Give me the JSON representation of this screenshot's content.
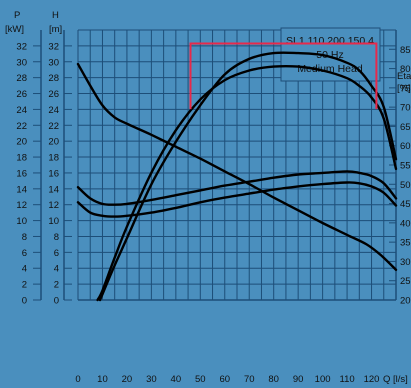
{
  "chart_data": {
    "type": "line",
    "title_lines": [
      "SL1.110.200.150.4",
      "50 Hz",
      "Medium Head"
    ],
    "xlabel": "Q [l/s]",
    "x_ticks": [
      0,
      10,
      20,
      30,
      40,
      50,
      60,
      70,
      80,
      90,
      100,
      110,
      120
    ],
    "xlim": [
      0,
      130
    ],
    "axes": [
      {
        "id": "P",
        "label_top": "P",
        "label_unit": "[kW]",
        "ticks": [
          0,
          2,
          4,
          6,
          8,
          10,
          12,
          14,
          16,
          18,
          20,
          22,
          24,
          26,
          28,
          30,
          32
        ]
      },
      {
        "id": "H",
        "label_top": "H",
        "label_unit": "[m]",
        "ticks": [
          0,
          2,
          4,
          6,
          8,
          10,
          12,
          14,
          16,
          18,
          20,
          22,
          24,
          26,
          28,
          30,
          32
        ]
      },
      {
        "id": "Eta",
        "label_top": "Eta",
        "label_unit": "[%]",
        "ticks": [
          20,
          25,
          30,
          35,
          40,
          45,
          50,
          55,
          60,
          65,
          70,
          75,
          80,
          85
        ]
      }
    ],
    "ylim_H": [
      0,
      34
    ],
    "ylim_Eta": [
      20,
      90
    ],
    "grid": true,
    "series": [
      {
        "axis": "H",
        "x": [
          0,
          5,
          10,
          15,
          20,
          30,
          40,
          50,
          60,
          70,
          80,
          90,
          100,
          110,
          118,
          124,
          130
        ],
        "y": [
          29.7,
          27.0,
          24.5,
          23.0,
          22.2,
          20.8,
          19.3,
          17.8,
          16.2,
          14.6,
          12.9,
          11.3,
          9.7,
          8.2,
          7.0,
          5.6,
          3.8
        ]
      },
      {
        "axis": "P",
        "x": [
          0,
          5,
          10,
          15,
          20,
          30,
          40,
          50,
          60,
          70,
          80,
          90,
          100,
          110,
          115,
          120,
          125,
          130
        ],
        "y": [
          12.3,
          11.0,
          10.6,
          10.5,
          10.6,
          11.0,
          11.6,
          12.3,
          12.9,
          13.4,
          13.9,
          14.3,
          14.6,
          14.8,
          14.7,
          14.3,
          13.5,
          11.9
        ]
      },
      {
        "axis": "P",
        "x": [
          0,
          5,
          10,
          15,
          20,
          30,
          40,
          50,
          60,
          70,
          80,
          90,
          100,
          110,
          115,
          120,
          125,
          130
        ],
        "y": [
          14.2,
          12.8,
          12.1,
          12.0,
          12.1,
          12.6,
          13.2,
          13.8,
          14.4,
          14.9,
          15.4,
          15.8,
          16.0,
          16.2,
          16.0,
          15.6,
          14.7,
          12.8
        ]
      },
      {
        "axis": "Eta",
        "x": [
          8,
          10,
          15,
          20,
          30,
          40,
          50,
          60,
          70,
          80,
          90,
          100,
          110,
          115,
          120,
          125,
          130
        ],
        "y": [
          20,
          22.5,
          31.0,
          39.0,
          53.0,
          64.0,
          72.0,
          77.0,
          79.5,
          80.5,
          80.5,
          79.5,
          77.5,
          75.5,
          72.5,
          67.0,
          54.0
        ]
      },
      {
        "axis": "Eta",
        "x": [
          9,
          10,
          15,
          20,
          30,
          40,
          50,
          60,
          70,
          80,
          90,
          100,
          110,
          115,
          120,
          125,
          130
        ],
        "y": [
          20,
          21.5,
          29.0,
          36.0,
          50.0,
          61.0,
          70.5,
          78.5,
          82.5,
          84.0,
          84.0,
          83.5,
          81.5,
          79.5,
          75.5,
          70.0,
          56.5
        ]
      }
    ],
    "operating_range": {
      "x_start": 46,
      "x_end": 122,
      "top_eta": 86.5,
      "bottom_eta": 69.5
    },
    "colors": {
      "background": "#4a8fbe",
      "grid": "#1d4e78",
      "curve": "#000000",
      "range": "#e8294a"
    }
  }
}
